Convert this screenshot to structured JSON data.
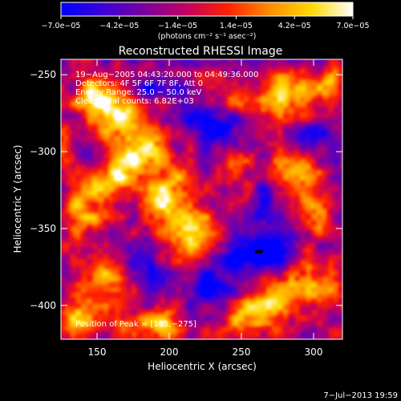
{
  "chart_data": {
    "type": "heatmap",
    "title": "Reconstructed RHESSI Image",
    "xlabel": "Heliocentric X (arcsec)",
    "ylabel": "Heliocentric Y (arcsec)",
    "xlim": [
      125,
      320
    ],
    "ylim": [
      -422,
      -240
    ],
    "x_ticks": [
      150,
      200,
      250,
      300
    ],
    "x_tick_labels": [
      "150",
      "200",
      "250",
      "300"
    ],
    "y_ticks": [
      -250,
      -300,
      -350,
      -400
    ],
    "y_tick_labels": [
      "−250",
      "−300",
      "−350",
      "−400"
    ],
    "colorbar": {
      "range": [
        -7e-05,
        7e-05
      ],
      "ticks": [
        -7e-05,
        -4.2e-05,
        -1.4e-05,
        1.4e-05,
        4.2e-05,
        7e-05
      ],
      "tick_labels": [
        "−7.0e−05",
        "−4.2e−05",
        "−1.4e−05",
        "1.4e−05",
        "4.2e−05",
        "7.0e−05"
      ],
      "unit_label": "(photons cm⁻² s⁻¹ asec⁻²)",
      "colors": [
        "#0000ff",
        "#3b00d8",
        "#7a00a0",
        "#c20060",
        "#ff2000",
        "#ff8c00",
        "#ffd800",
        "#ffffff"
      ]
    },
    "annotations": [
      "19−Aug−2005 04:43:20.000 to 04:49:36.000",
      "Detectors: 4F 5F 6F 7F 8F, Att 0",
      "Energy Range: 25.0 − 50.0 keV",
      "Clean    Total counts: 6.82E+03"
    ],
    "peak_label": "Position of Peak = [165,−275]",
    "peak": [
      165,
      -275
    ],
    "sources_positive": [
      {
        "x": 165,
        "y": -275,
        "amp": 1.0,
        "sx": 14,
        "sy": 10
      },
      {
        "x": 148,
        "y": -262,
        "amp": 0.8,
        "sx": 10,
        "sy": 9
      },
      {
        "x": 180,
        "y": -300,
        "amp": 0.85,
        "sx": 14,
        "sy": 12
      },
      {
        "x": 160,
        "y": -320,
        "amp": 0.75,
        "sx": 12,
        "sy": 10
      },
      {
        "x": 200,
        "y": -330,
        "amp": 0.85,
        "sx": 14,
        "sy": 14
      },
      {
        "x": 215,
        "y": -355,
        "amp": 0.8,
        "sx": 12,
        "sy": 12
      },
      {
        "x": 140,
        "y": -340,
        "amp": 0.65,
        "sx": 10,
        "sy": 12
      },
      {
        "x": 150,
        "y": -385,
        "amp": 0.7,
        "sx": 14,
        "sy": 14
      },
      {
        "x": 135,
        "y": -410,
        "amp": 0.9,
        "sx": 10,
        "sy": 9
      },
      {
        "x": 175,
        "y": -415,
        "amp": 0.6,
        "sx": 14,
        "sy": 8
      },
      {
        "x": 200,
        "y": -412,
        "amp": 0.55,
        "sx": 10,
        "sy": 8
      },
      {
        "x": 245,
        "y": -265,
        "amp": 0.55,
        "sx": 14,
        "sy": 10
      },
      {
        "x": 282,
        "y": -262,
        "amp": 0.9,
        "sx": 12,
        "sy": 10
      },
      {
        "x": 310,
        "y": -258,
        "amp": 0.7,
        "sx": 8,
        "sy": 10
      },
      {
        "x": 290,
        "y": -310,
        "amp": 0.75,
        "sx": 12,
        "sy": 10
      },
      {
        "x": 300,
        "y": -340,
        "amp": 0.6,
        "sx": 10,
        "sy": 12
      },
      {
        "x": 245,
        "y": -315,
        "amp": 0.45,
        "sx": 10,
        "sy": 10
      },
      {
        "x": 275,
        "y": -395,
        "amp": 0.85,
        "sx": 14,
        "sy": 12
      },
      {
        "x": 305,
        "y": -385,
        "amp": 0.6,
        "sx": 10,
        "sy": 12
      },
      {
        "x": 255,
        "y": -410,
        "amp": 0.7,
        "sx": 12,
        "sy": 10
      },
      {
        "x": 130,
        "y": -300,
        "amp": 0.5,
        "sx": 8,
        "sy": 14
      },
      {
        "x": 225,
        "y": -255,
        "amp": 0.45,
        "sx": 8,
        "sy": 8
      }
    ],
    "sources_negative": [
      {
        "x": 262,
        "y": -365,
        "amp": -1.0,
        "sx": 16,
        "sy": 8
      },
      {
        "x": 220,
        "y": -275,
        "amp": -0.55,
        "sx": 14,
        "sy": 12
      },
      {
        "x": 265,
        "y": -335,
        "amp": -0.55,
        "sx": 8,
        "sy": 8
      },
      {
        "x": 240,
        "y": -285,
        "amp": -0.4,
        "sx": 8,
        "sy": 8
      },
      {
        "x": 300,
        "y": -290,
        "amp": -0.45,
        "sx": 8,
        "sy": 8
      },
      {
        "x": 230,
        "y": -385,
        "amp": -0.5,
        "sx": 10,
        "sy": 8
      },
      {
        "x": 190,
        "y": -380,
        "amp": -0.45,
        "sx": 8,
        "sy": 8
      },
      {
        "x": 185,
        "y": -260,
        "amp": -0.35,
        "sx": 8,
        "sy": 8
      },
      {
        "x": 145,
        "y": -300,
        "amp": -0.35,
        "sx": 8,
        "sy": 8
      }
    ]
  },
  "footer": {
    "date": "7−Jul−2013 19:59"
  }
}
